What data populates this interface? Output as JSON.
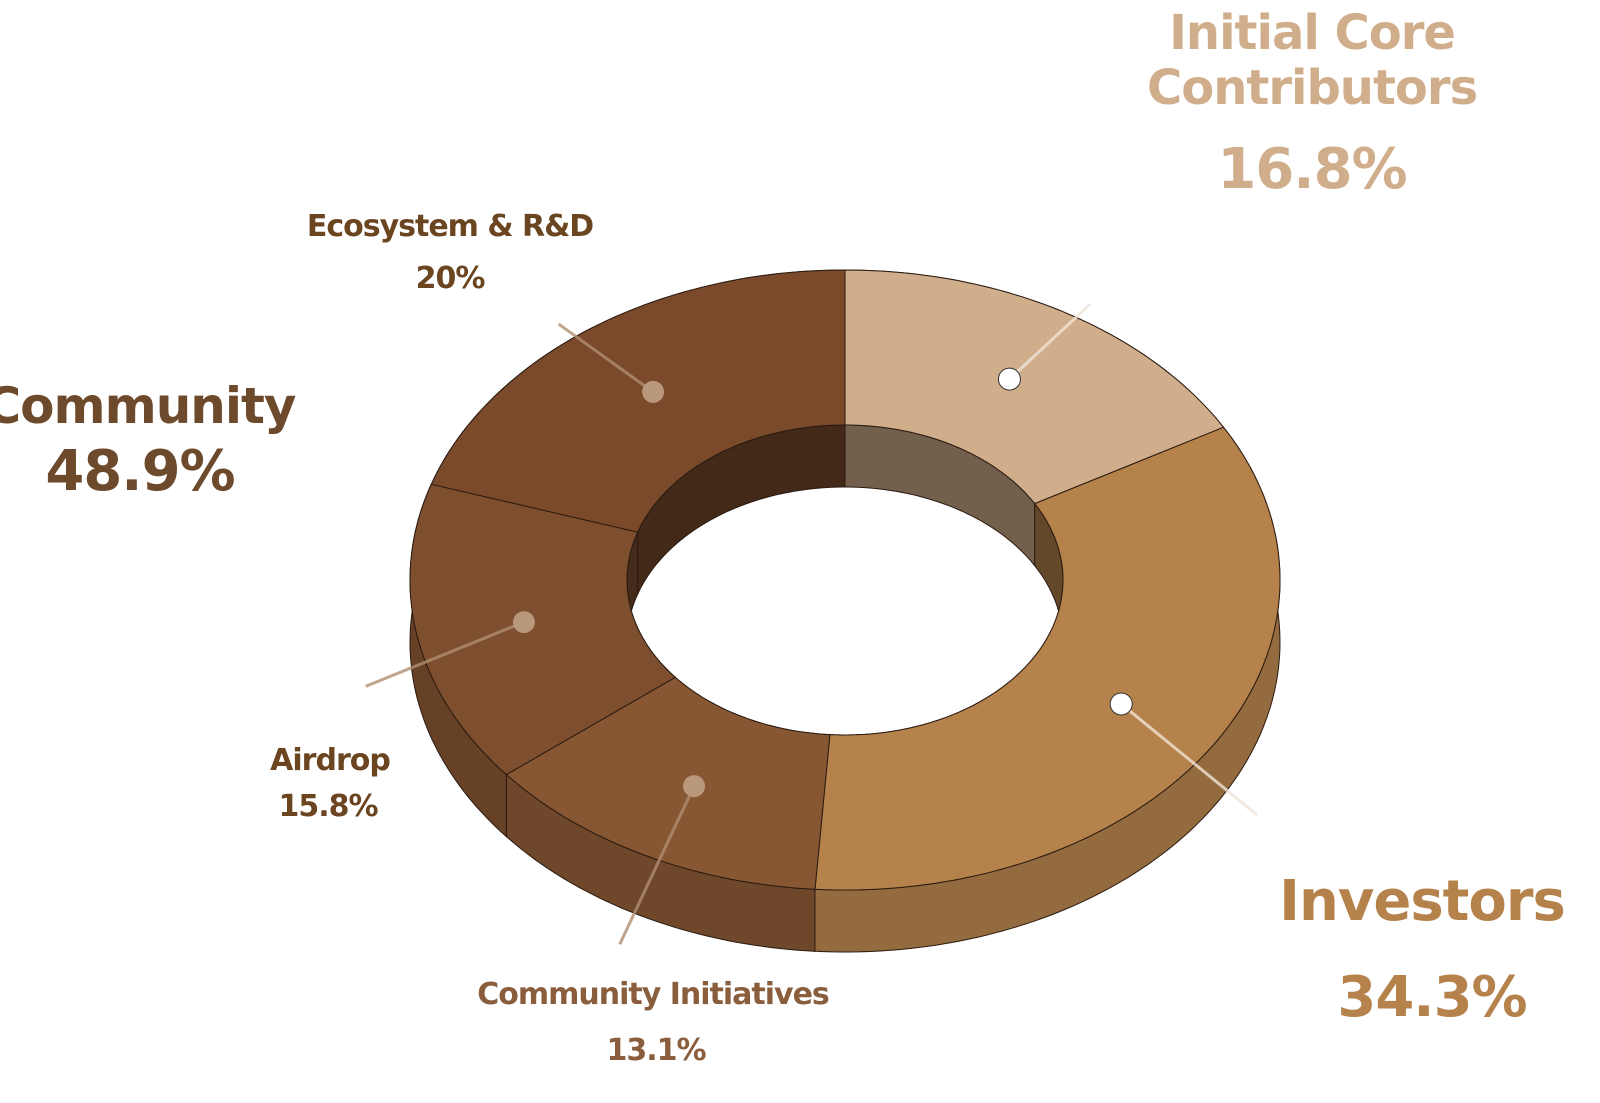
{
  "chart_data": {
    "type": "donut",
    "categories": [
      "Initial Core Contributors",
      "Investors",
      "Community Initiatives",
      "Airdrop",
      "Ecosystem & R&D"
    ],
    "values": [
      16.8,
      34.3,
      13.1,
      15.8,
      20
    ],
    "value_labels": [
      "16.8%",
      "34.3%",
      "13.1%",
      "15.8%",
      "20%"
    ],
    "colors": [
      "#d1ae8b",
      "#b5824c",
      "#875733",
      "#7d4f2e",
      "#7a4a2b"
    ],
    "group": {
      "name": "Community",
      "value": 48.9,
      "value_label": "48.9%"
    }
  }
}
